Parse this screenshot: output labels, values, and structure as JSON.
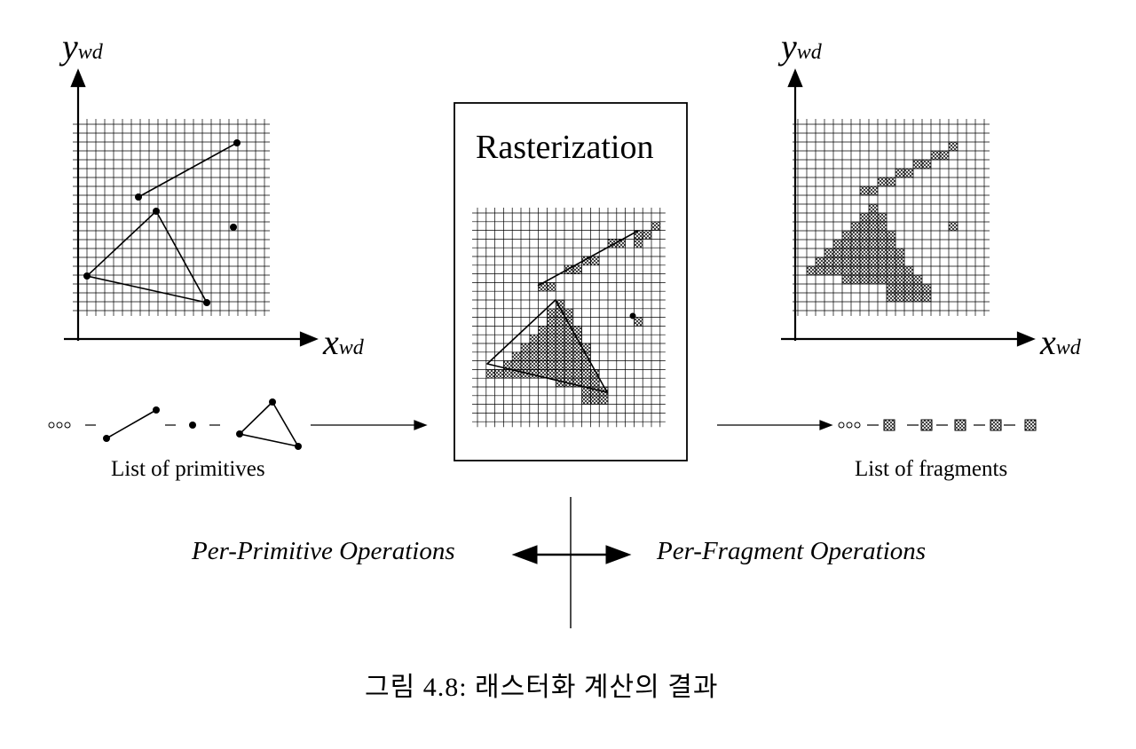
{
  "left_panel": {
    "y_axis": {
      "main": "y",
      "sub": "wd"
    },
    "x_axis": {
      "main": "x",
      "sub": "wd"
    }
  },
  "right_panel": {
    "y_axis": {
      "main": "y",
      "sub": "wd"
    },
    "x_axis": {
      "main": "x",
      "sub": "wd"
    }
  },
  "center_box": {
    "title": "Rasterization"
  },
  "primitives_list": {
    "label": "List of primitives"
  },
  "fragments_list": {
    "label": "List of fragments"
  },
  "operations": {
    "left": "Per-Primitive Operations",
    "right": "Per-Fragment Operations"
  },
  "caption": "그림 4.8: 래스터화 계산의 결과",
  "colors": {
    "ink": "#000000",
    "background": "#ffffff"
  },
  "icons": [
    "ellipsis-circles-icon",
    "fragment-hatched-square-icon",
    "arrow-right-icon",
    "double-arrow-icon"
  ]
}
